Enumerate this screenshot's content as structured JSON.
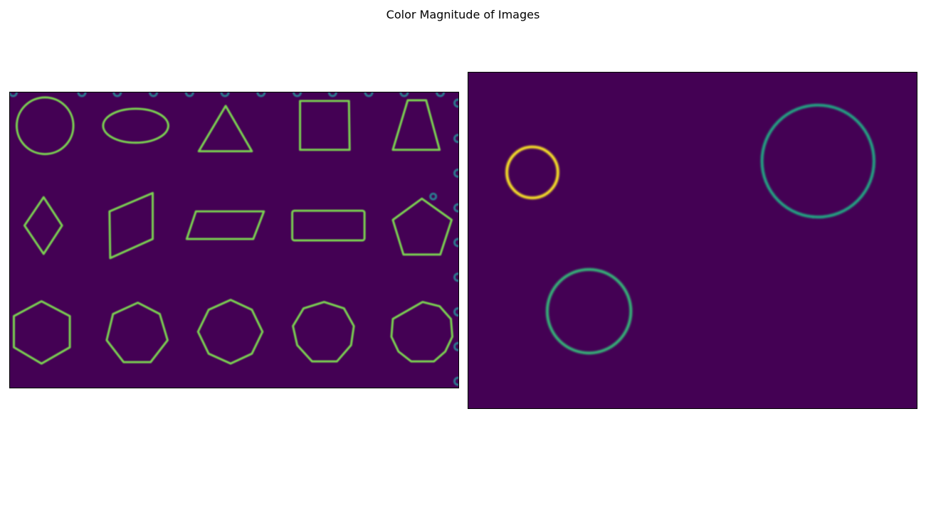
{
  "figure": {
    "title": "Color Magnitude of Images"
  },
  "colors": {
    "background": "#440154",
    "edge_main": "#7ad151",
    "edge_bright": "#fde725",
    "edge_mid": "#22a884",
    "edge_dim": "#2a788e"
  },
  "left_image": {
    "shapes": [
      "circle",
      "ellipse",
      "triangle",
      "square",
      "trapezoid",
      "rhombus",
      "parallelogram",
      "slanted-parallelogram",
      "rectangle",
      "pentagon",
      "hexagon",
      "heptagon",
      "octagon",
      "nonagon",
      "decagon"
    ]
  },
  "right_image": {
    "shapes": [
      "small-circle",
      "large-circle",
      "medium-circle"
    ]
  }
}
